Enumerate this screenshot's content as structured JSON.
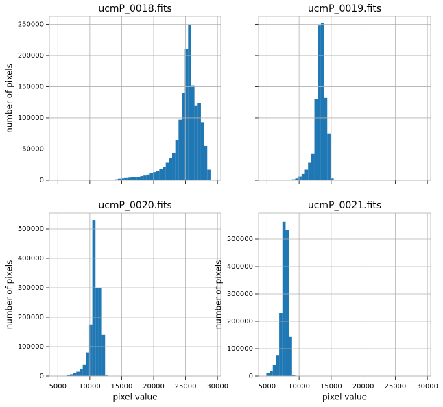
{
  "chart_data": [
    {
      "type": "histogram",
      "title": "ucmP_0018.fits",
      "ylabel": "number of pixels",
      "color": "#1f77b4",
      "grid": true,
      "show_xtick_labels": false,
      "show_ytick_labels": true,
      "bins": [
        4900,
        5400,
        5900,
        6400,
        6900,
        7400,
        7900,
        8400,
        8900,
        9400,
        9900,
        10400,
        10900,
        11400,
        11900,
        12400,
        12900,
        13400,
        13900,
        14400,
        14900,
        15400,
        15900,
        16400,
        16900,
        17400,
        17900,
        18400,
        18900,
        19400,
        19900,
        20400,
        20900,
        21400,
        21900,
        22400,
        22900,
        23400,
        23900,
        24400,
        24900,
        25400,
        25900,
        26400,
        26900,
        27400,
        27900,
        28400,
        28900,
        29400,
        29900
      ],
      "values": [
        0,
        0,
        0,
        0,
        0,
        0,
        0,
        0,
        0,
        0,
        0,
        0,
        0,
        0,
        0,
        0,
        0,
        500,
        1500,
        2500,
        3000,
        3500,
        4000,
        4500,
        5000,
        5500,
        6500,
        7500,
        9000,
        11000,
        13000,
        15000,
        18000,
        22000,
        28000,
        36000,
        44000,
        64000,
        97000,
        140000,
        210000,
        249000,
        152000,
        120000,
        123000,
        93000,
        55000,
        17000,
        1000,
        300
      ],
      "xlim": [
        3680,
        30520
      ],
      "xticks": [
        5000,
        10000,
        15000,
        20000,
        25000,
        30000
      ],
      "ylim": [
        0,
        262500
      ],
      "yticks": [
        0,
        50000,
        100000,
        150000,
        200000,
        250000
      ]
    },
    {
      "type": "histogram",
      "title": "ucmP_0019.fits",
      "color": "#1f77b4",
      "grid": true,
      "show_xtick_labels": false,
      "show_ytick_labels": false,
      "bins": [
        4900,
        5400,
        5900,
        6400,
        6900,
        7400,
        7900,
        8400,
        8900,
        9400,
        9900,
        10400,
        10900,
        11400,
        11900,
        12400,
        12900,
        13400,
        13900,
        14400,
        14900,
        15400,
        15900,
        16400,
        16900,
        17400,
        17900,
        18400,
        18900,
        19400,
        19900,
        20400,
        20900,
        21400,
        21900,
        22400,
        22900,
        23400,
        23900,
        24400,
        24900,
        25400,
        25900,
        26400,
        26900,
        27400,
        27900,
        28400,
        28900,
        29400,
        29900
      ],
      "values": [
        0,
        0,
        0,
        0,
        0,
        0,
        0,
        0,
        1500,
        3000,
        6000,
        10000,
        17000,
        28000,
        42000,
        130000,
        248000,
        252000,
        132000,
        75000,
        3000,
        1000,
        800,
        500,
        0,
        0,
        0,
        0,
        0,
        0,
        0,
        0,
        0,
        0,
        0,
        0,
        0,
        0,
        0,
        0,
        0,
        0,
        0,
        0,
        0,
        0,
        0,
        0,
        0,
        0
      ],
      "xlim": [
        3680,
        30520
      ],
      "xticks": [
        5000,
        10000,
        15000,
        20000,
        25000,
        30000
      ],
      "ylim": [
        0,
        262500
      ],
      "yticks": [
        0,
        50000,
        100000,
        150000,
        200000,
        250000
      ]
    },
    {
      "type": "histogram",
      "title": "ucmP_0020.fits",
      "xlabel": "pixel value",
      "ylabel": "number of pixels",
      "color": "#1f77b4",
      "grid": true,
      "show_xtick_labels": true,
      "show_ytick_labels": true,
      "bins": [
        4900,
        5400,
        5900,
        6400,
        6900,
        7400,
        7900,
        8400,
        8900,
        9400,
        9900,
        10400,
        10900,
        11400,
        11900,
        12400,
        12900,
        13400,
        13900,
        14400,
        14900,
        15400,
        15900,
        16400,
        16900,
        17400,
        17900,
        18400,
        18900,
        19400,
        19900,
        20400,
        20900,
        21400,
        21900,
        22400,
        22900,
        23400,
        23900,
        24400,
        24900,
        25400,
        25900,
        26400,
        26900,
        27400,
        27900,
        28400,
        28900,
        29400,
        29900
      ],
      "values": [
        0,
        0,
        0,
        3000,
        6000,
        10000,
        15000,
        25000,
        40000,
        80000,
        175000,
        530000,
        298000,
        298000,
        140000,
        2000,
        0,
        0,
        0,
        0,
        0,
        0,
        0,
        0,
        0,
        0,
        0,
        0,
        0,
        0,
        0,
        0,
        0,
        0,
        0,
        0,
        0,
        0,
        0,
        0,
        0,
        0,
        0,
        0,
        0,
        0,
        0,
        0,
        0,
        0
      ],
      "xlim": [
        3680,
        30520
      ],
      "xticks": [
        5000,
        10000,
        15000,
        20000,
        25000,
        30000
      ],
      "ylim": [
        0,
        553500
      ],
      "yticks": [
        0,
        100000,
        200000,
        300000,
        400000,
        500000
      ]
    },
    {
      "type": "histogram",
      "title": "ucmP_0021.fits",
      "xlabel": "pixel value",
      "ylabel": "number of pixels",
      "color": "#1f77b4",
      "grid": true,
      "show_xtick_labels": true,
      "show_ytick_labels": true,
      "bins": [
        4900,
        5400,
        5900,
        6400,
        6900,
        7400,
        7900,
        8400,
        8900,
        9400,
        9900,
        10400,
        10900,
        11400,
        11900,
        12400,
        12900,
        13400,
        13900,
        14400,
        14900,
        15400,
        15900,
        16400,
        16900,
        17400,
        17900,
        18400,
        18900,
        19400,
        19900,
        20400,
        20900,
        21400,
        21900,
        22400,
        22900,
        23400,
        23900,
        24400,
        24900,
        25400,
        25900,
        26400,
        26900,
        27400,
        27900,
        28400,
        28900,
        29400,
        29900
      ],
      "values": [
        12000,
        18000,
        40000,
        77000,
        230000,
        563000,
        533000,
        143000,
        5000,
        0,
        0,
        0,
        0,
        0,
        0,
        0,
        0,
        0,
        0,
        0,
        0,
        0,
        0,
        0,
        0,
        0,
        0,
        0,
        0,
        0,
        0,
        0,
        0,
        0,
        0,
        0,
        0,
        0,
        0,
        0,
        0,
        0,
        0,
        0,
        0,
        0,
        0,
        0,
        0,
        0
      ],
      "xlim": [
        3680,
        30520
      ],
      "xticks": [
        5000,
        10000,
        15000,
        20000,
        25000,
        30000
      ],
      "ylim": [
        0,
        595000
      ],
      "yticks": [
        0,
        100000,
        200000,
        300000,
        400000,
        500000
      ]
    }
  ]
}
